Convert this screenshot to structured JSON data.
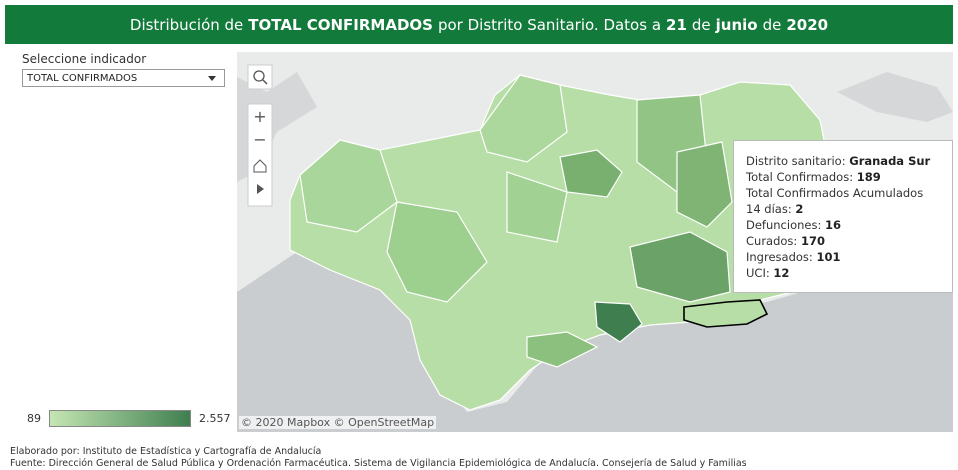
{
  "header": {
    "title": [
      "Distribución de",
      "TOTAL CONFIRMADOS",
      "por Distrito Sanitario. Datos a",
      "21",
      "de",
      "junio",
      "de",
      "2020"
    ]
  },
  "filter": {
    "label": "Seleccione indicador",
    "selected": "TOTAL CONFIRMADOS"
  },
  "legend": {
    "min": 89,
    "max": {
      "value": 2557,
      "label": "2.557"
    }
  },
  "tooltip": {
    "rows": [
      {
        "label": "Distrito sanitario:",
        "value": "Granada Sur"
      },
      {
        "label": "Total Confirmados:",
        "value": 189
      },
      {
        "label": "Total Confirmados Acumulados 14 días:",
        "value": 2
      },
      {
        "label": "Defunciones:",
        "value": 16
      },
      {
        "label": "Curados:",
        "value": 170
      },
      {
        "label": "Ingresados:",
        "value": 101
      },
      {
        "label": "UCI:",
        "value": 12
      }
    ]
  },
  "map": {
    "attribution": "© 2020 Mapbox © OpenStreetMap"
  },
  "footer": {
    "lines": [
      "Elaborado por: Instituto de Estadística y Cartografía de Andalucía",
      "Fuente: Dirección General de Salud Pública y Ordenación Farmacéutica. Sistema de Vigilancia Epidemiológica de Andalucía. Consejería de Salud y Familias"
    ]
  }
}
